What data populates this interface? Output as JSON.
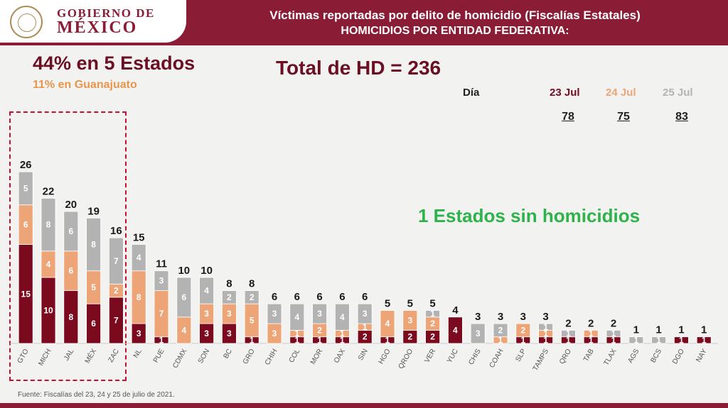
{
  "header": {
    "logo_line1": "GOBIERNO DE",
    "logo_line2": "MÉXICO",
    "title": "Víctimas reportadas por delito de homicidio (Fiscalías Estatales)",
    "subtitle": "HOMICIDIOS POR ENTIDAD FEDERATIVA:"
  },
  "highlights": {
    "pct_title": "44% en 5 Estados",
    "pct_sub": "11% en Guanajuato",
    "total": "Total de HD = 236",
    "no_homicides": "1 Estados sin homicidios"
  },
  "daily": {
    "label": "Día",
    "days": [
      {
        "date": "23 Jul",
        "value": "78"
      },
      {
        "date": "24 Jul",
        "value": "75"
      },
      {
        "date": "25 Jul",
        "value": "83"
      }
    ]
  },
  "footer": "Fuente: Fiscalías del 23, 24 y 25 de julio de 2021.",
  "colors": {
    "jul23": "#7b0a1f",
    "jul24": "#eda577",
    "jul25": "#b3b3b3",
    "accent": "#8a1c35",
    "green": "#2db34a"
  },
  "chart_data": {
    "type": "bar",
    "stacked": true,
    "categories": [
      "GTO",
      "MICH",
      "JAL",
      "MÉX",
      "ZAC",
      "NL",
      "PUE",
      "CDMX",
      "SON",
      "BC",
      "GRO",
      "CHIH",
      "COL",
      "MOR",
      "OAX",
      "SIN",
      "HGO",
      "QROO",
      "VER",
      "YUC",
      "CHIS",
      "COAH",
      "SLP",
      "TAMPS",
      "QRO",
      "TAB",
      "TLAX",
      "AGS",
      "BCS",
      "DGO",
      "NAY"
    ],
    "totals": [
      26,
      22,
      20,
      19,
      16,
      15,
      11,
      10,
      10,
      8,
      8,
      6,
      6,
      6,
      6,
      6,
      5,
      5,
      5,
      4,
      3,
      3,
      3,
      3,
      2,
      2,
      2,
      1,
      1,
      1,
      1
    ],
    "series": [
      {
        "name": "23 Jul",
        "values": [
          15,
          10,
          8,
          6,
          7,
          3,
          1,
          0,
          3,
          3,
          1,
          0,
          1,
          1,
          1,
          2,
          1,
          2,
          2,
          4,
          0,
          0,
          1,
          1,
          1,
          1,
          1,
          0,
          0,
          1,
          1
        ]
      },
      {
        "name": "24 Jul",
        "values": [
          6,
          4,
          6,
          5,
          2,
          8,
          7,
          4,
          3,
          3,
          5,
          3,
          1,
          2,
          1,
          1,
          4,
          3,
          2,
          0,
          0,
          1,
          2,
          1,
          0,
          1,
          0,
          0,
          0,
          0,
          0
        ]
      },
      {
        "name": "25 Jul",
        "values": [
          5,
          8,
          6,
          8,
          7,
          4,
          3,
          6,
          4,
          2,
          2,
          3,
          4,
          3,
          4,
          3,
          0,
          0,
          1,
          0,
          3,
          2,
          0,
          1,
          1,
          0,
          1,
          1,
          1,
          0,
          0
        ]
      }
    ],
    "ylim": [
      0,
      26
    ]
  }
}
